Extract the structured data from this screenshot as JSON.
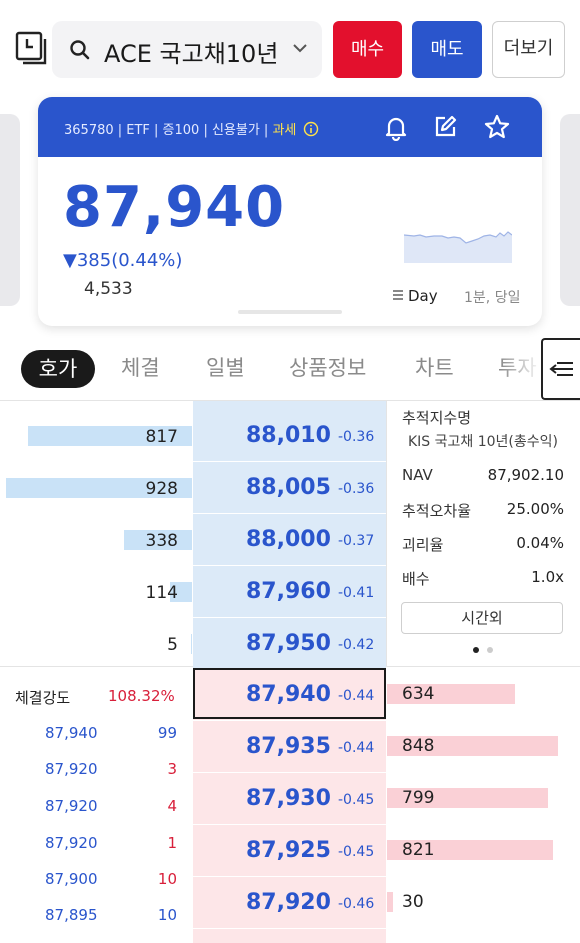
{
  "header": {
    "stock_name": "ACE 국고채10년",
    "buy_label": "매수",
    "sell_label": "매도",
    "more_label": "더보기"
  },
  "card": {
    "meta": "365780 | ETF | 증100 | 신용불가 | ",
    "tax_label": "과세",
    "price": "87,940",
    "change": "▼385(0.44%)",
    "volume": "4,533",
    "day_label": "Day",
    "period_label": "1분, 당일"
  },
  "tabs": [
    "호가",
    "체결",
    "일별",
    "상품정보",
    "차트",
    "투자"
  ],
  "orderbook": {
    "asks": [
      {
        "price": "88,010",
        "change": "-0.36",
        "qty": "817"
      },
      {
        "price": "88,005",
        "change": "-0.36",
        "qty": "928"
      },
      {
        "price": "88,000",
        "change": "-0.37",
        "qty": "338"
      },
      {
        "price": "87,960",
        "change": "-0.41",
        "qty": "114"
      },
      {
        "price": "87,950",
        "change": "-0.42",
        "qty": "5"
      }
    ],
    "bids": [
      {
        "price": "87,940",
        "change": "-0.44",
        "qty": "634"
      },
      {
        "price": "87,935",
        "change": "-0.44",
        "qty": "848"
      },
      {
        "price": "87,930",
        "change": "-0.45",
        "qty": "799"
      },
      {
        "price": "87,925",
        "change": "-0.45",
        "qty": "821"
      },
      {
        "price": "87,920",
        "change": "-0.46",
        "qty": "30"
      }
    ]
  },
  "info": {
    "index_title": "추적지수명",
    "index_name": "KIS 국고채 10년(총수익)",
    "nav_label": "NAV",
    "nav_value": "87,902.10",
    "tracking_label": "추적오차율",
    "tracking_value": "25.00%",
    "divergence_label": "괴리율",
    "divergence_value": "0.04%",
    "multiple_label": "배수",
    "multiple_value": "1.0x",
    "after_hours_label": "시간외"
  },
  "trades": {
    "strength_label": "체결강도",
    "strength_value": "108.32%",
    "rows": [
      {
        "price": "87,940",
        "qty": "99",
        "side": "buy"
      },
      {
        "price": "87,920",
        "qty": "3",
        "side": "sell"
      },
      {
        "price": "87,920",
        "qty": "4",
        "side": "sell"
      },
      {
        "price": "87,920",
        "qty": "1",
        "side": "sell"
      },
      {
        "price": "87,900",
        "qty": "10",
        "side": "sell"
      },
      {
        "price": "87,895",
        "qty": "10",
        "side": "buy"
      }
    ]
  },
  "colors": {
    "accent_blue": "#2a55cc",
    "buy_red": "#e3102d",
    "ask_bg": "#dceaf8",
    "bid_bg": "#fde6e8"
  }
}
